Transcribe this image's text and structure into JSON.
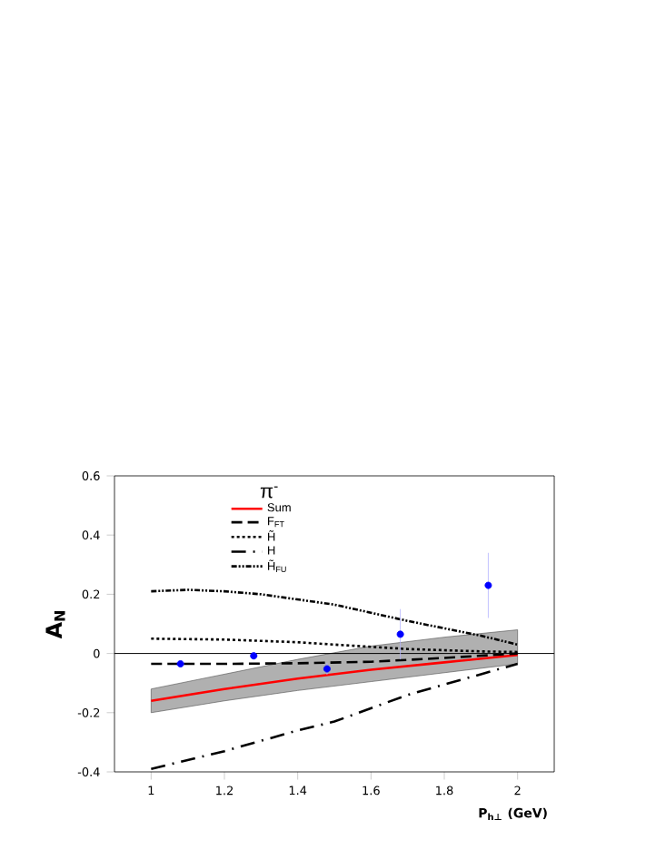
{
  "chart_data": {
    "type": "line",
    "ylabel": "A$_{N}$",
    "xlabel": "P$_{h⊥}$ (GeV)",
    "legend_title": "π$^{-}$",
    "legend": "top left",
    "grid": false,
    "marker": "none",
    "xlim": [
      0.9,
      2.1
    ],
    "ylim": [
      -0.4,
      0.6
    ],
    "xticks": [
      1,
      1.2,
      1.4,
      1.6,
      1.8,
      2
    ],
    "yticks": [
      -0.4,
      -0.2,
      0,
      0.2,
      0.4,
      0.6
    ],
    "ref_lines": [
      {
        "axis": "y",
        "value": 0,
        "color": "#000000",
        "line_style": "solid"
      }
    ],
    "series": [
      {
        "name": "Sum",
        "type": "line",
        "color": "#ff0000",
        "line_style": "solid",
        "x": [
          1,
          1.2,
          1.4,
          1.6,
          1.8,
          2
        ],
        "values": [
          -0.16,
          -0.12,
          -0.085,
          -0.055,
          -0.03,
          -0.005
        ],
        "lower": [
          -0.2,
          -0.16,
          -0.125,
          -0.095,
          -0.065,
          -0.035
        ],
        "upper": [
          -0.12,
          -0.07,
          -0.02,
          0.025,
          0.055,
          0.08
        ]
      },
      {
        "name": "F$_{FT}$",
        "type": "line",
        "color": "#000000",
        "line_style": "dashed",
        "x": [
          1,
          1.2,
          1.4,
          1.6,
          1.8,
          2
        ],
        "values": [
          -0.035,
          -0.035,
          -0.033,
          -0.028,
          -0.015,
          0
        ]
      },
      {
        "name": "H̃",
        "type": "line",
        "color": "#000000",
        "line_style": "dotted",
        "x": [
          1,
          1.2,
          1.4,
          1.5,
          1.7,
          1.9,
          2
        ],
        "values": [
          0.05,
          0.047,
          0.038,
          0.03,
          0.015,
          0.007,
          0.005
        ]
      },
      {
        "name": "H",
        "type": "line",
        "color": "#000000",
        "line_style": "dashdot",
        "x": [
          1,
          1.2,
          1.4,
          1.5,
          1.7,
          1.9,
          2
        ],
        "values": [
          -0.39,
          -0.33,
          -0.26,
          -0.23,
          -0.14,
          -0.07,
          -0.035
        ]
      },
      {
        "name": "H̃$_{FU}$",
        "type": "line",
        "color": "#000000",
        "line_style": "dashdotdot",
        "x": [
          1,
          1.1,
          1.2,
          1.3,
          1.5,
          1.7,
          1.9,
          2
        ],
        "values": [
          0.21,
          0.215,
          0.21,
          0.2,
          0.165,
          0.11,
          0.06,
          0.03
        ]
      },
      {
        "type": "scatter",
        "color": "#0000ff",
        "marker": "circle",
        "x": [
          1.08,
          1.28,
          1.48,
          1.68,
          1.92
        ],
        "values": [
          -0.035,
          -0.008,
          -0.052,
          0.065,
          0.23
        ],
        "errors": [
          0.01,
          0.01,
          0.02,
          0.085,
          0.11
        ]
      }
    ]
  }
}
